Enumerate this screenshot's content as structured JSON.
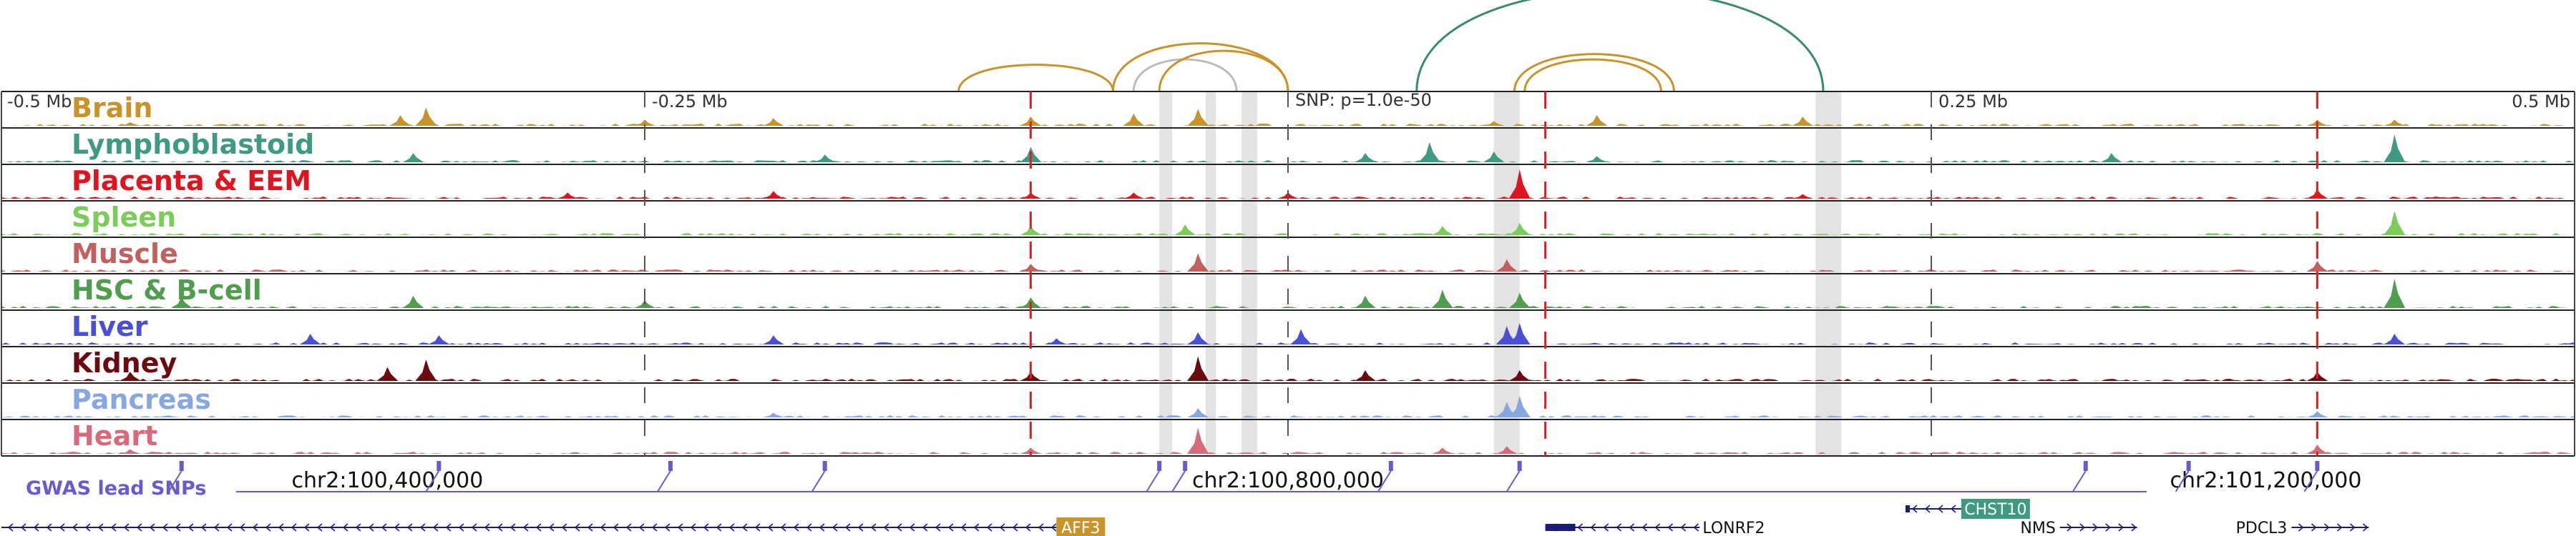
{
  "chart_data": {
    "type": "genome-browser",
    "region": {
      "start": -0.5,
      "end": 0.5,
      "unit": "Mb"
    },
    "axis_ticks": [
      {
        "pos": -0.5,
        "label": "-0.5 Mb"
      },
      {
        "pos": -0.25,
        "label": "-0.25 Mb"
      },
      {
        "pos": 0.25,
        "label": "0.25 Mb"
      },
      {
        "pos": 0.5,
        "label": "0.5 Mb"
      }
    ],
    "snp_annotation": {
      "pos": 0.0,
      "label": "SNP: p=1.0e-50"
    },
    "tracks": [
      {
        "name": "Brain",
        "color": "#c8942a",
        "peaks": [
          [
            -0.45,
            0.12
          ],
          [
            -0.345,
            0.35
          ],
          [
            -0.335,
            0.6
          ],
          [
            -0.25,
            0.2
          ],
          [
            -0.2,
            0.25
          ],
          [
            -0.1,
            0.3
          ],
          [
            -0.06,
            0.4
          ],
          [
            -0.035,
            0.55
          ],
          [
            0.08,
            0.15
          ],
          [
            0.12,
            0.35
          ],
          [
            0.2,
            0.3
          ],
          [
            0.4,
            0.2
          ],
          [
            0.43,
            0.2
          ]
        ]
      },
      {
        "name": "Lymphoblastoid",
        "color": "#3f9a83",
        "peaks": [
          [
            -0.34,
            0.3
          ],
          [
            -0.18,
            0.25
          ],
          [
            -0.1,
            0.5
          ],
          [
            0.03,
            0.3
          ],
          [
            0.055,
            0.65
          ],
          [
            0.08,
            0.35
          ],
          [
            0.12,
            0.2
          ],
          [
            0.32,
            0.3
          ],
          [
            0.43,
            0.9
          ]
        ]
      },
      {
        "name": "Placenta & EEM",
        "color": "#e0141e",
        "peaks": [
          [
            -0.28,
            0.2
          ],
          [
            -0.2,
            0.25
          ],
          [
            -0.1,
            0.2
          ],
          [
            -0.06,
            0.2
          ],
          [
            0.0,
            0.2
          ],
          [
            0.09,
            0.95
          ],
          [
            0.2,
            0.15
          ],
          [
            0.4,
            0.3
          ]
        ]
      },
      {
        "name": "Spleen",
        "color": "#7ccc5a",
        "peaks": [
          [
            -0.1,
            0.3
          ],
          [
            -0.04,
            0.35
          ],
          [
            0.06,
            0.3
          ],
          [
            0.09,
            0.4
          ],
          [
            0.43,
            0.8
          ]
        ]
      },
      {
        "name": "Muscle",
        "color": "#c2605d",
        "peaks": [
          [
            -0.1,
            0.25
          ],
          [
            -0.035,
            0.6
          ],
          [
            0.085,
            0.4
          ],
          [
            0.4,
            0.35
          ]
        ]
      },
      {
        "name": "HSC & B-cell",
        "color": "#4e9e4e",
        "peaks": [
          [
            -0.43,
            0.35
          ],
          [
            -0.34,
            0.4
          ],
          [
            -0.25,
            0.25
          ],
          [
            -0.1,
            0.35
          ],
          [
            0.03,
            0.4
          ],
          [
            0.06,
            0.6
          ],
          [
            0.09,
            0.5
          ],
          [
            0.43,
            0.95
          ]
        ]
      },
      {
        "name": "Liver",
        "color": "#4a4fd8",
        "peaks": [
          [
            -0.38,
            0.35
          ],
          [
            -0.33,
            0.3
          ],
          [
            -0.2,
            0.3
          ],
          [
            -0.09,
            0.2
          ],
          [
            -0.035,
            0.4
          ],
          [
            0.005,
            0.5
          ],
          [
            0.085,
            0.6
          ],
          [
            0.09,
            0.7
          ],
          [
            0.43,
            0.35
          ]
        ]
      },
      {
        "name": "Kidney",
        "color": "#6b0a0f",
        "peaks": [
          [
            -0.45,
            0.3
          ],
          [
            -0.35,
            0.45
          ],
          [
            -0.335,
            0.7
          ],
          [
            -0.1,
            0.3
          ],
          [
            -0.035,
            0.8
          ],
          [
            0.03,
            0.35
          ],
          [
            0.09,
            0.35
          ],
          [
            0.4,
            0.3
          ]
        ]
      },
      {
        "name": "Pancreas",
        "color": "#86a8e0",
        "peaks": [
          [
            -0.2,
            0.15
          ],
          [
            -0.035,
            0.3
          ],
          [
            0.085,
            0.5
          ],
          [
            0.09,
            0.7
          ],
          [
            0.4,
            0.2
          ]
        ]
      },
      {
        "name": "Heart",
        "color": "#d96a7c",
        "peaks": [
          [
            -0.45,
            0.15
          ],
          [
            -0.1,
            0.2
          ],
          [
            -0.035,
            0.85
          ],
          [
            0.06,
            0.2
          ],
          [
            0.085,
            0.25
          ],
          [
            0.4,
            0.3
          ]
        ]
      }
    ],
    "red_dashed_lines": [
      -0.1,
      0.1,
      0.4
    ],
    "gray_highlights": [
      [
        -0.05,
        -0.045
      ],
      [
        -0.032,
        -0.028
      ],
      [
        -0.018,
        -0.012
      ],
      [
        0.08,
        0.09
      ],
      [
        0.205,
        0.215
      ]
    ],
    "arcs": [
      {
        "from": -0.128,
        "to": -0.068,
        "color": "#c8942a",
        "height": 0.25
      },
      {
        "from": -0.068,
        "to": 0.0,
        "color": "#c8942a",
        "height": 0.45
      },
      {
        "from": -0.06,
        "to": -0.02,
        "color": "#bbbbbb",
        "height": 0.3
      },
      {
        "from": -0.05,
        "to": 0.0,
        "color": "#c8942a",
        "height": 0.38
      },
      {
        "from": 0.088,
        "to": 0.15,
        "color": "#c8942a",
        "height": 0.35
      },
      {
        "from": 0.092,
        "to": 0.145,
        "color": "#c8942a",
        "height": 0.3
      },
      {
        "from": 0.05,
        "to": 0.208,
        "color": "#3a8a6e",
        "height": 0.95
      }
    ],
    "coordinates": [
      {
        "pos": -0.35,
        "label": "chr2:100,400,000"
      },
      {
        "pos": 0.0,
        "label": "chr2:100,800,000"
      },
      {
        "pos": 0.38,
        "label": "chr2:101,200,000"
      }
    ],
    "gwas_label": "GWAS lead SNPs",
    "gwas_snps": [
      -0.43,
      -0.33,
      -0.24,
      -0.18,
      -0.05,
      -0.04,
      0.04,
      0.09,
      0.31,
      0.35,
      0.4
    ],
    "genes": [
      {
        "name": "AFF3",
        "start": -0.5,
        "end": -0.09,
        "strand": "-",
        "boxed": true,
        "box_color": "#c8942a",
        "row": 1
      },
      {
        "name": "LONRF2",
        "start": 0.1,
        "end": 0.16,
        "strand": "-",
        "boxed": false,
        "row": 1
      },
      {
        "name": "CHST10",
        "start": 0.24,
        "end": 0.28,
        "strand": "-",
        "boxed": true,
        "box_color": "#3f9a83",
        "row": 0
      },
      {
        "name": "NMS",
        "start": 0.3,
        "end": 0.33,
        "strand": "+",
        "boxed": false,
        "row": 1
      },
      {
        "name": "PDCL3",
        "start": 0.39,
        "end": 0.42,
        "strand": "+",
        "boxed": false,
        "row": 1
      }
    ]
  }
}
